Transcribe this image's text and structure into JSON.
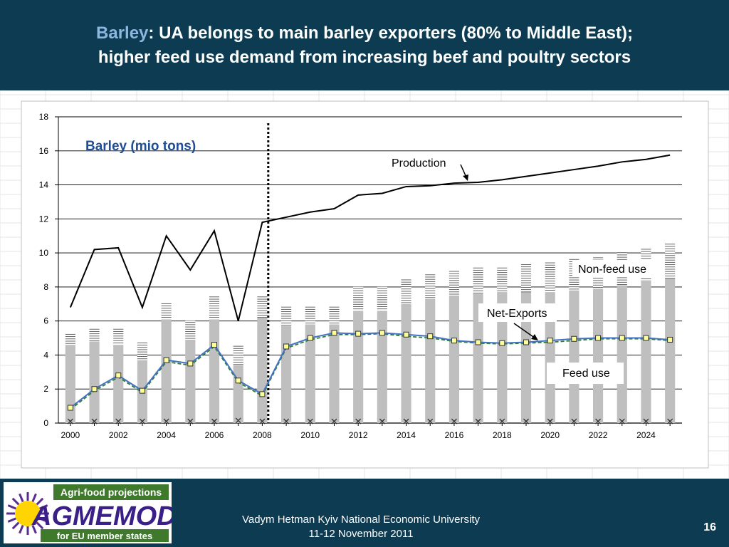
{
  "slide": {
    "title_keyword": "Barley",
    "title_line1_rest": ": UA belongs to main barley exporters (80% to Middle East);",
    "title_line2": "higher feed use demand from increasing beef and poultry sectors",
    "page_number": "16"
  },
  "footer": {
    "author_line": "Vadym Hetman Kyiv National Economic University",
    "date_line": "11-12 November 2011",
    "logo_top": "Agri-food projections",
    "logo_main": "AGMEMOD",
    "logo_bottom": "for EU member states"
  },
  "colors": {
    "header_bg": "#0d3b52",
    "title_keyword": "#8fb6e0",
    "production": "#000000",
    "net_exports": "#4472c4",
    "feed_dashed": "#2e7d32",
    "bar": "#bfbfbf",
    "marker_fill": "#ffff99"
  },
  "chart_data": {
    "type": "bar",
    "title": "Barley (mio tons)",
    "xlabel": "",
    "ylabel": "",
    "ylim": [
      0,
      18
    ],
    "yticks": [
      0,
      2,
      4,
      6,
      8,
      10,
      12,
      14,
      16,
      18
    ],
    "xtick_labels": [
      "2000",
      "2002",
      "2004",
      "2006",
      "2008",
      "2010",
      "2012",
      "2014",
      "2016",
      "2018",
      "2020",
      "2022",
      "2024"
    ],
    "grid": true,
    "projection_start_year": 2008,
    "x": [
      2000,
      2001,
      2002,
      2003,
      2004,
      2005,
      2006,
      2007,
      2008,
      2009,
      2010,
      2011,
      2012,
      2013,
      2014,
      2015,
      2016,
      2017,
      2018,
      2019,
      2020,
      2021,
      2022,
      2023,
      2024,
      2025
    ],
    "series": [
      {
        "name": "Production",
        "kind": "line",
        "values": [
          6.8,
          10.2,
          10.3,
          6.8,
          11.0,
          9.0,
          11.3,
          6.0,
          11.8,
          12.1,
          12.4,
          12.6,
          13.4,
          13.5,
          13.9,
          13.95,
          14.1,
          14.15,
          14.3,
          14.5,
          14.7,
          14.9,
          15.1,
          15.35,
          15.5,
          15.75
        ]
      },
      {
        "name": "Feed use",
        "kind": "bar",
        "values": [
          4.6,
          4.8,
          4.6,
          3.7,
          6.1,
          4.9,
          6.1,
          3.4,
          6.2,
          5.7,
          5.8,
          5.8,
          6.6,
          6.6,
          7.0,
          7.3,
          7.5,
          7.6,
          7.7,
          7.7,
          7.7,
          7.8,
          7.9,
          8.1,
          8.3,
          8.5
        ]
      },
      {
        "name": "Non-feed use",
        "kind": "bar-stacked",
        "values": [
          0.7,
          0.8,
          1.0,
          1.1,
          1.0,
          1.1,
          1.4,
          1.2,
          1.3,
          1.2,
          1.1,
          1.1,
          1.4,
          1.4,
          1.5,
          1.5,
          1.5,
          1.6,
          1.5,
          1.7,
          1.8,
          1.9,
          1.9,
          2.0,
          2.0,
          2.1
        ]
      },
      {
        "name": "Net-Exports",
        "kind": "line",
        "values": [
          0.9,
          2.0,
          2.8,
          1.9,
          3.7,
          3.5,
          4.6,
          2.5,
          1.7,
          4.5,
          5.0,
          5.3,
          5.25,
          5.3,
          5.2,
          5.1,
          4.85,
          4.75,
          4.7,
          4.75,
          4.85,
          4.95,
          5.0,
          5.0,
          5.0,
          4.9
        ]
      },
      {
        "name": "",
        "kind": "line-dashed",
        "values": [
          0.8,
          1.9,
          2.7,
          1.8,
          3.6,
          3.4,
          4.5,
          2.4,
          1.6,
          4.4,
          4.9,
          5.2,
          5.2,
          5.25,
          5.1,
          5.0,
          4.8,
          4.7,
          4.65,
          4.7,
          4.75,
          4.85,
          4.95,
          4.95,
          4.95,
          4.85
        ]
      },
      {
        "name": "",
        "kind": "markers-x",
        "values": [
          0.1,
          0.1,
          0.1,
          0.1,
          0.1,
          0.1,
          0.1,
          0.15,
          0.1,
          0.1,
          0.1,
          0.1,
          0.1,
          0.1,
          0.1,
          0.1,
          0.1,
          0.1,
          0.1,
          0.1,
          0.1,
          0.1,
          0.1,
          0.1,
          0.1,
          0.1
        ]
      }
    ],
    "annotations": [
      "Production",
      "Non-feed use",
      "Net-Exports",
      "Feed use"
    ]
  }
}
